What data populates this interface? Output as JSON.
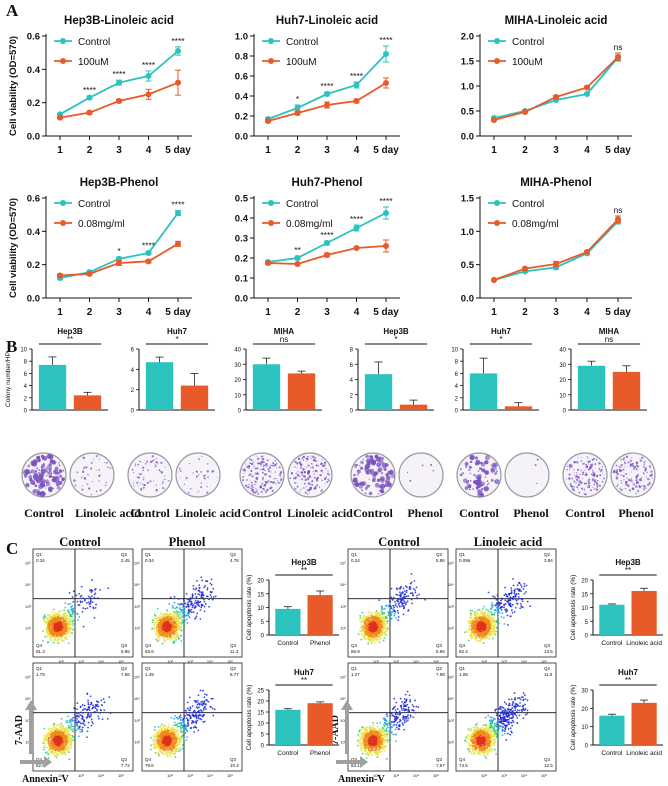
{
  "colors": {
    "control": "#2cc2bd",
    "treated": "#e85a2a",
    "dish": "#7a4fc0",
    "axis": "#111111"
  },
  "panel_letters": [
    "A",
    "B",
    "C"
  ],
  "chart_data": [
    {
      "id": "a1",
      "type": "line",
      "title": "Hep3B-Linoleic acid",
      "xlabel": "",
      "ylabel": "Cell viability (OD=570)",
      "categories": [
        "1",
        "2",
        "3",
        "4",
        "5 day"
      ],
      "yticks": [
        "0.0",
        "0.2",
        "0.4",
        "0.6"
      ],
      "ylim": [
        0,
        0.6
      ],
      "legend_position": "top-left",
      "series": [
        {
          "name": "Control",
          "values": [
            0.13,
            0.23,
            0.32,
            0.36,
            0.51
          ],
          "errors": [
            0.005,
            0.01,
            0.015,
            0.03,
            0.025
          ]
        },
        {
          "name": "100uM",
          "values": [
            0.11,
            0.14,
            0.21,
            0.25,
            0.32
          ],
          "errors": [
            0.005,
            0.01,
            0.01,
            0.03,
            0.075
          ]
        }
      ],
      "annotations": [
        "",
        "****",
        "****",
        "****",
        "****"
      ]
    },
    {
      "id": "a2",
      "type": "line",
      "title": "Huh7-Linoleic acid",
      "xlabel": "",
      "ylabel": "",
      "categories": [
        "1",
        "2",
        "3",
        "4",
        "5 day"
      ],
      "yticks": [
        "0.0",
        "0.2",
        "0.4",
        "0.6",
        "0.8",
        "1.0"
      ],
      "ylim": [
        0,
        1.0
      ],
      "legend_position": "top-left",
      "series": [
        {
          "name": "Control",
          "values": [
            0.17,
            0.28,
            0.42,
            0.51,
            0.82
          ],
          "errors": [
            0.01,
            0.03,
            0.02,
            0.03,
            0.08
          ]
        },
        {
          "name": "100uM",
          "values": [
            0.15,
            0.23,
            0.31,
            0.35,
            0.53
          ],
          "errors": [
            0.01,
            0.02,
            0.03,
            0.02,
            0.05
          ]
        }
      ],
      "annotations": [
        "",
        "*",
        "****",
        "****",
        "****"
      ]
    },
    {
      "id": "a3",
      "type": "line",
      "title": "MIHA-Linoleic acid",
      "xlabel": "",
      "ylabel": "",
      "categories": [
        "1",
        "2",
        "3",
        "4",
        "5 day"
      ],
      "yticks": [
        "0.0",
        "0.5",
        "1.0",
        "1.5",
        "2.0"
      ],
      "ylim": [
        0,
        2.0
      ],
      "legend_position": "top-left",
      "series": [
        {
          "name": "Control",
          "values": [
            0.36,
            0.5,
            0.72,
            0.84,
            1.57
          ],
          "errors": [
            0.01,
            0.02,
            0.02,
            0.02,
            0.05
          ]
        },
        {
          "name": "100uM",
          "values": [
            0.32,
            0.48,
            0.78,
            0.97,
            1.58
          ],
          "errors": [
            0.02,
            0.02,
            0.03,
            0.03,
            0.08
          ]
        }
      ],
      "annotations": [
        "",
        "",
        "",
        "",
        "ns"
      ]
    },
    {
      "id": "a4",
      "type": "line",
      "title": "Hep3B-Phenol",
      "xlabel": "",
      "ylabel": "Cell viability (OD=570)",
      "categories": [
        "1",
        "2",
        "3",
        "4",
        "5 day"
      ],
      "yticks": [
        "0.0",
        "0.2",
        "0.4",
        "0.6"
      ],
      "ylim": [
        0,
        0.6
      ],
      "legend_position": "top-left",
      "series": [
        {
          "name": "Control",
          "values": [
            0.12,
            0.155,
            0.235,
            0.27,
            0.51
          ],
          "errors": [
            0.01,
            0.01,
            0.01,
            0.01,
            0.015
          ]
        },
        {
          "name": "0.08mg/ml",
          "values": [
            0.135,
            0.145,
            0.21,
            0.22,
            0.325
          ],
          "errors": [
            0.01,
            0.01,
            0.015,
            0.01,
            0.015
          ]
        }
      ],
      "annotations": [
        "",
        "",
        "*",
        "****",
        "****"
      ]
    },
    {
      "id": "a5",
      "type": "line",
      "title": "Huh7-Phenol",
      "xlabel": "",
      "ylabel": "",
      "categories": [
        "1",
        "2",
        "3",
        "4",
        "5 day"
      ],
      "yticks": [
        "0.0",
        "0.1",
        "0.2",
        "0.3",
        "0.4",
        "0.5"
      ],
      "ylim": [
        0,
        0.5
      ],
      "legend_position": "top-left",
      "series": [
        {
          "name": "Control",
          "values": [
            0.18,
            0.2,
            0.275,
            0.35,
            0.425
          ],
          "errors": [
            0.005,
            0.01,
            0.01,
            0.015,
            0.03
          ]
        },
        {
          "name": "0.08mg/ml",
          "values": [
            0.175,
            0.17,
            0.215,
            0.25,
            0.26
          ],
          "errors": [
            0.005,
            0.005,
            0.01,
            0.005,
            0.03
          ]
        }
      ],
      "annotations": [
        "",
        "**",
        "****",
        "****",
        "****"
      ]
    },
    {
      "id": "a6",
      "type": "line",
      "title": "MIHA-Phenol",
      "xlabel": "",
      "ylabel": "",
      "categories": [
        "1",
        "2",
        "3",
        "4",
        "5 day"
      ],
      "yticks": [
        "0.0",
        "0.5",
        "1.0",
        "1.5"
      ],
      "ylim": [
        0,
        1.5
      ],
      "legend_position": "top-left",
      "series": [
        {
          "name": "Control",
          "values": [
            0.27,
            0.4,
            0.46,
            0.67,
            1.15
          ],
          "errors": [
            0.01,
            0.02,
            0.03,
            0.02,
            0.04
          ]
        },
        {
          "name": "0.08mg/ml",
          "values": [
            0.27,
            0.44,
            0.51,
            0.69,
            1.18
          ],
          "errors": [
            0.01,
            0.02,
            0.04,
            0.02,
            0.05
          ]
        }
      ],
      "annotations": [
        "",
        "",
        "",
        "",
        "ns"
      ]
    },
    {
      "id": "b1",
      "type": "bar",
      "title": "Hep3B",
      "ylabel": "Colony number/HP",
      "categories": [
        "Control",
        "Linoleic acid"
      ],
      "values": [
        7.4,
        2.4
      ],
      "errors": [
        1.3,
        0.5
      ],
      "ylim": [
        0,
        10
      ],
      "yticks": [
        "0",
        "2",
        "4",
        "6",
        "8",
        "10"
      ],
      "significance": "**"
    },
    {
      "id": "b2",
      "type": "bar",
      "title": "Huh7",
      "ylabel": "",
      "categories": [
        "Control",
        "Linoleic acid"
      ],
      "values": [
        4.7,
        2.4
      ],
      "errors": [
        0.5,
        1.2
      ],
      "ylim": [
        0,
        6
      ],
      "yticks": [
        "0",
        "2",
        "4",
        "6"
      ],
      "significance": "*"
    },
    {
      "id": "b3",
      "type": "bar",
      "title": "MIHA",
      "ylabel": "",
      "categories": [
        "Control",
        "Linoleic acid"
      ],
      "values": [
        30,
        24
      ],
      "errors": [
        4,
        1.5
      ],
      "ylim": [
        0,
        40
      ],
      "yticks": [
        "0",
        "10",
        "20",
        "30",
        "40"
      ],
      "significance": "ns"
    },
    {
      "id": "b4",
      "type": "bar",
      "title": "Hep3B",
      "ylabel": "",
      "categories": [
        "Control",
        "Phenol"
      ],
      "values": [
        4.7,
        0.7
      ],
      "errors": [
        1.6,
        0.6
      ],
      "ylim": [
        0,
        8
      ],
      "yticks": [
        "0",
        "2",
        "4",
        "6",
        "8"
      ],
      "significance": "*"
    },
    {
      "id": "b5",
      "type": "bar",
      "title": "Huh7",
      "ylabel": "",
      "categories": [
        "Control",
        "Phenol"
      ],
      "values": [
        6.0,
        0.6
      ],
      "errors": [
        2.5,
        0.6
      ],
      "ylim": [
        0,
        10
      ],
      "yticks": [
        "0",
        "2",
        "4",
        "6",
        "8",
        "10"
      ],
      "significance": "*"
    },
    {
      "id": "b6",
      "type": "bar",
      "title": "MIHA",
      "ylabel": "",
      "categories": [
        "Control",
        "Phenol"
      ],
      "values": [
        29,
        25
      ],
      "errors": [
        3,
        4
      ],
      "ylim": [
        0,
        40
      ],
      "yticks": [
        "0",
        "10",
        "20",
        "30",
        "40"
      ],
      "significance": "ns"
    },
    {
      "id": "c1",
      "type": "bar",
      "title": "Hep3B",
      "ylabel": "Cell apoptosis rate (%)",
      "categories": [
        "Control",
        "Phenol"
      ],
      "values": [
        9.5,
        14.5
      ],
      "errors": [
        0.8,
        1.5
      ],
      "ylim": [
        0,
        20
      ],
      "yticks": [
        "0",
        "5",
        "10",
        "15",
        "20"
      ],
      "significance": "**"
    },
    {
      "id": "c2",
      "type": "bar",
      "title": "Huh7",
      "ylabel": "Cell apoptosis rate (%)",
      "categories": [
        "Control",
        "Phenol"
      ],
      "values": [
        16,
        19
      ],
      "errors": [
        0.5,
        0.6
      ],
      "ylim": [
        0,
        25
      ],
      "yticks": [
        "0",
        "5",
        "10",
        "15",
        "20",
        "25"
      ],
      "significance": "**"
    },
    {
      "id": "c3",
      "type": "bar",
      "title": "Hep3B",
      "ylabel": "Cell apoptosis rate (%)",
      "categories": [
        "Control",
        "Linoleic acid"
      ],
      "values": [
        11,
        16
      ],
      "errors": [
        0.3,
        1.0
      ],
      "ylim": [
        0,
        20
      ],
      "yticks": [
        "0",
        "5",
        "10",
        "15",
        "20"
      ],
      "significance": "**"
    },
    {
      "id": "c4",
      "type": "bar",
      "title": "Huh7",
      "ylabel": "Cell apoptosis rate (%)",
      "categories": [
        "Control",
        "Linoleic acid"
      ],
      "values": [
        16,
        23
      ],
      "errors": [
        0.8,
        1.5
      ],
      "ylim": [
        0,
        30
      ],
      "yticks": [
        "0",
        "10",
        "20",
        "30"
      ],
      "significance": "**"
    }
  ],
  "colony_labels": [
    [
      "Control",
      "Linoleic acid"
    ],
    [
      "Control",
      "Linoleic acid"
    ],
    [
      "Control",
      "Linoleic acid"
    ],
    [
      "Control",
      "Phenol"
    ],
    [
      "Control",
      "Phenol"
    ],
    [
      "Control",
      "Phenol"
    ]
  ],
  "colony_density": [
    [
      0.8,
      0.25
    ],
    [
      0.35,
      0.2
    ],
    [
      0.9,
      0.85
    ],
    [
      0.6,
      0.03
    ],
    [
      0.45,
      0.02
    ],
    [
      0.9,
      0.8
    ]
  ],
  "flow_headers": [
    "Control",
    "Phenol",
    "Control",
    "Linoleic acid"
  ],
  "flow_axis": {
    "x": "Annexin-V",
    "y": "7-AAD"
  },
  "flow_ticks": [
    "0",
    "10²",
    "10³",
    "10⁴",
    "10⁵"
  ],
  "flow_quadrants": [
    {
      "q1": "Q1",
      "q1v": "0.34",
      "q2": "Q2",
      "q2v": "2.45",
      "q3": "Q3",
      "q3v": "5.95",
      "q4": "Q4",
      "q4v": "91.3"
    },
    {
      "q1": "Q1",
      "q1v": "0.34",
      "q2": "Q2",
      "q2v": "4.76",
      "q3": "Q3",
      "q3v": "11.3",
      "q4": "Q4",
      "q4v": "83.6"
    },
    {
      "q1": "Q1",
      "q1v": "0.24",
      "q2": "Q2",
      "q2v": "5.86",
      "q3": "Q3",
      "q3v": "6.96",
      "q4": "Q4",
      "q4v": "86.9"
    },
    {
      "q1": "Q1",
      "q1v": "0.096",
      "q2": "Q2",
      "q2v": "3.94",
      "q3": "Q3",
      "q3v": "13.5",
      "q4": "Q4",
      "q4v": "82.4"
    },
    {
      "q1": "Q1",
      "q1v": "1.79",
      "q2": "Q2",
      "q2v": "7.86",
      "q3": "Q3",
      "q3v": "7.72",
      "q4": "Q4",
      "q4v": "82.6"
    },
    {
      "q1": "Q1",
      "q1v": "1.49",
      "q2": "Q2",
      "q2v": "8.77",
      "q3": "Q3",
      "q3v": "10.3",
      "q4": "Q4",
      "q4v": "79.6"
    },
    {
      "q1": "Q1",
      "q1v": "1.27",
      "q2": "Q2",
      "q2v": "7.98",
      "q3": "Q3",
      "q3v": "7.67",
      "q4": "Q4",
      "q4v": "83.1"
    },
    {
      "q1": "Q1",
      "q1v": "1.08",
      "q2": "Q2",
      "q2v": "11.9",
      "q3": "Q3",
      "q3v": "12.5",
      "q4": "Q4",
      "q4v": "74.5"
    }
  ]
}
